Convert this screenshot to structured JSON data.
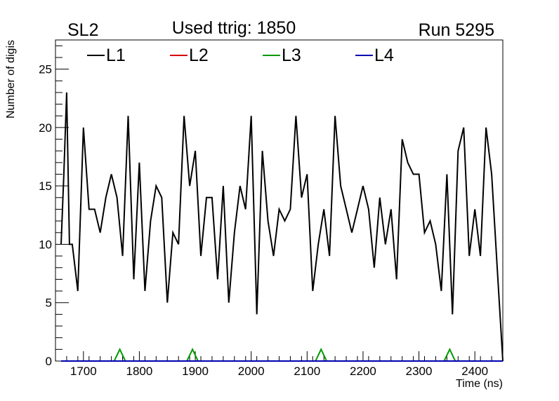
{
  "header": {
    "left": "SL2",
    "center": "Used ttrig: 1850",
    "right": "Run 5295"
  },
  "chart_data": {
    "type": "line",
    "xlabel": "Time (ns)",
    "ylabel": "Number of digis",
    "xlim": [
      1650,
      2450
    ],
    "ylim": [
      0,
      27.5
    ],
    "x_ticks": [
      1700,
      1800,
      1900,
      2000,
      2100,
      2200,
      2300,
      2400
    ],
    "y_ticks": [
      0,
      5,
      10,
      15,
      20,
      25
    ],
    "grid": false,
    "legend_position": "top",
    "series": [
      {
        "name": "L1",
        "color": "#000000",
        "x": [
          1660,
          1665,
          1670,
          1675,
          1680,
          1690,
          1700,
          1710,
          1720,
          1730,
          1740,
          1750,
          1760,
          1770,
          1780,
          1790,
          1800,
          1810,
          1820,
          1830,
          1840,
          1850,
          1860,
          1870,
          1880,
          1890,
          1900,
          1910,
          1920,
          1930,
          1940,
          1950,
          1960,
          1970,
          1980,
          1990,
          2000,
          2010,
          2020,
          2030,
          2040,
          2050,
          2060,
          2070,
          2080,
          2090,
          2100,
          2110,
          2120,
          2130,
          2140,
          2150,
          2160,
          2170,
          2180,
          2190,
          2200,
          2210,
          2220,
          2230,
          2240,
          2250,
          2260,
          2270,
          2280,
          2290,
          2300,
          2310,
          2320,
          2330,
          2340,
          2350,
          2360,
          2370,
          2380,
          2390,
          2400,
          2410,
          2420,
          2430,
          2440,
          2445,
          2450
        ],
        "values": [
          10,
          16,
          23,
          10,
          10,
          6,
          20,
          13,
          13,
          11,
          14,
          16,
          14,
          9,
          21,
          7,
          17,
          6,
          12,
          15,
          14,
          5,
          11,
          10,
          21,
          15,
          18,
          9,
          14,
          14,
          7,
          15,
          5,
          11,
          15,
          13,
          21,
          4,
          18,
          12,
          9,
          13,
          12,
          13,
          21,
          14,
          16,
          6,
          10,
          13,
          9,
          21,
          15,
          13,
          11,
          13,
          15,
          13,
          8,
          14,
          10,
          13,
          7,
          19,
          17,
          16,
          16,
          11,
          12,
          10,
          6,
          16,
          4,
          18,
          20,
          9,
          13,
          9,
          20,
          16,
          8,
          4,
          0
        ]
      },
      {
        "name": "L2",
        "color": "#d40000",
        "x": [
          1660,
          2450
        ],
        "values": [
          0,
          0
        ]
      },
      {
        "name": "L3",
        "color": "#009a00",
        "x": [
          1660,
          1755,
          1765,
          1775,
          1885,
          1895,
          1905,
          2115,
          2125,
          2135,
          2345,
          2355,
          2365,
          2450
        ],
        "values": [
          0,
          0,
          1,
          0,
          0,
          1,
          0,
          0,
          1,
          0,
          0,
          1,
          0,
          0
        ]
      },
      {
        "name": "L4",
        "color": "#0000b4",
        "x": [
          1660,
          2450
        ],
        "values": [
          0,
          0
        ]
      }
    ]
  }
}
